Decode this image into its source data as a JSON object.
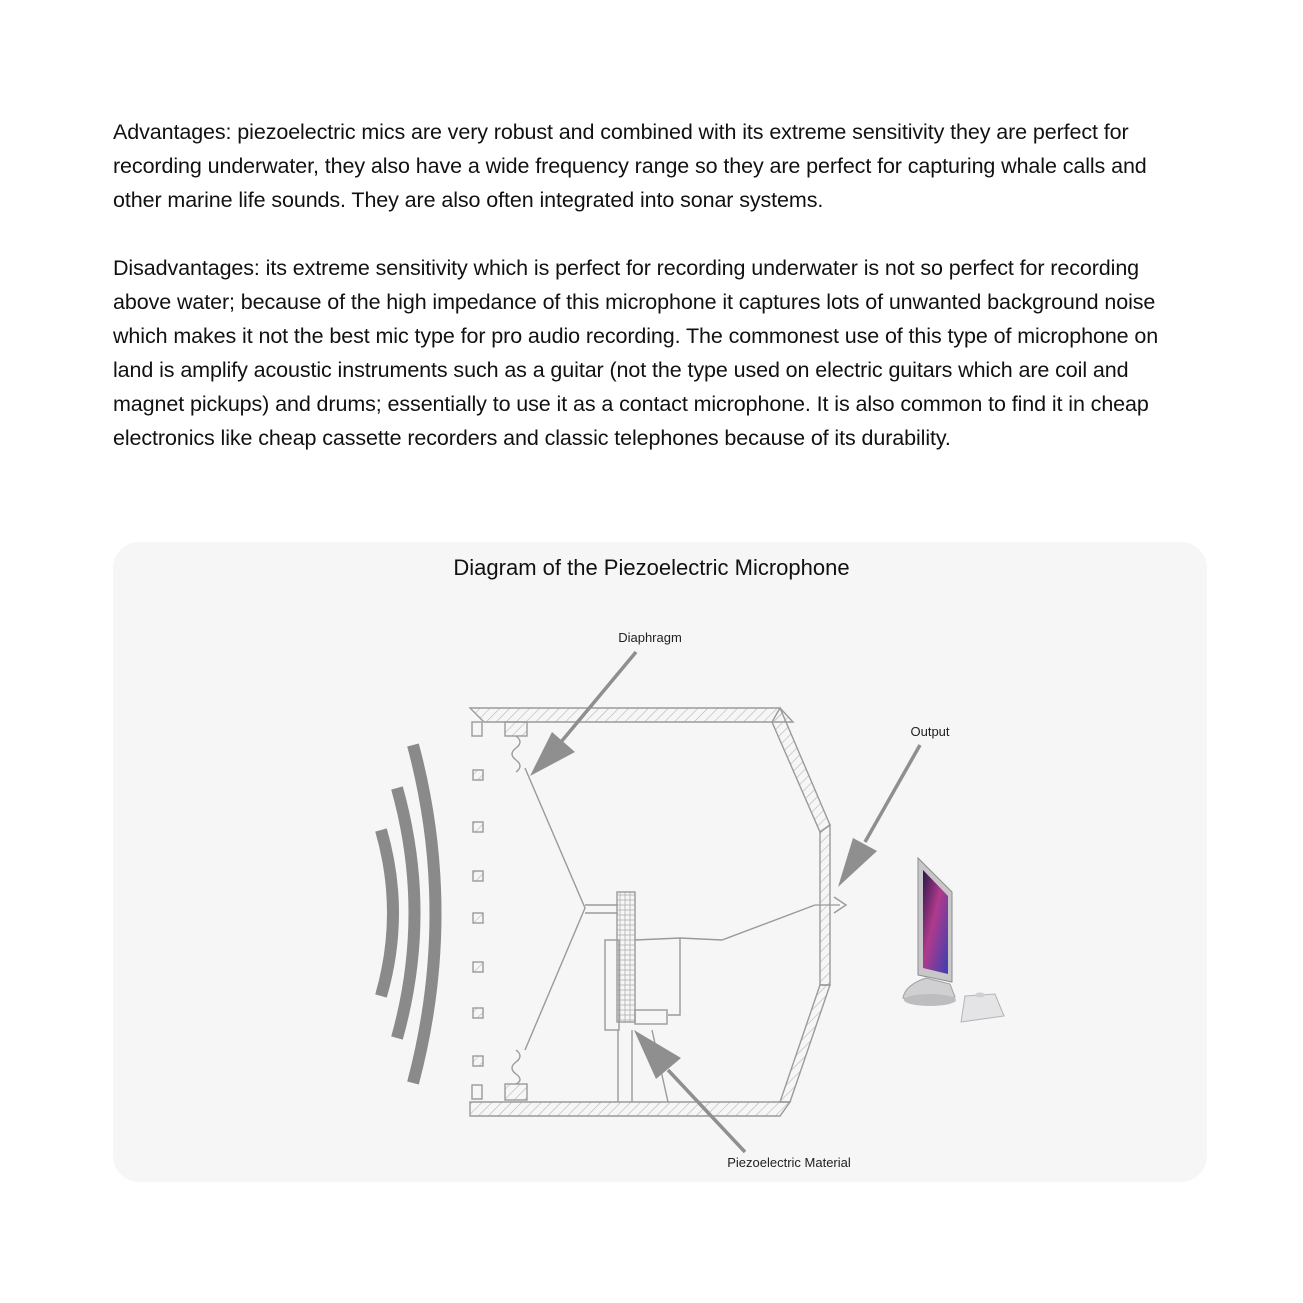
{
  "document": {
    "advantages": "Advantages: piezoelectric mics are very robust and combined with its extreme sensitivity they are perfect for recording underwater, they also have a wide frequency range so they are perfect for capturing whale calls and other marine life sounds. They are also often integrated into sonar systems.",
    "disadvantages": "Disadvantages: its extreme sensitivity which is perfect for recording underwater is not so perfect for recording above water; because of the high impedance of this microphone it captures lots of unwanted background noise which makes it not the best mic type for pro audio recording. The commonest use of this type of microphone on land is amplify acoustic instruments such as a guitar (not the type used on electric guitars which are coil and magnet pickups) and drums; essentially to use it as a contact microphone. It is also common to find it in cheap electronics like cheap cassette recorders and classic telephones because of its durability."
  },
  "figure": {
    "title": "Diagram of the Piezoelectric Microphone",
    "labels": {
      "diaphragm": "Diaphragm",
      "output": "Output",
      "piezo": "Piezoelectric Material"
    }
  },
  "colors": {
    "card_background": "#f6f6f6",
    "sound_wave": "#8a8a8a",
    "arrow": "#8f8f8f",
    "sketch": "#9a9a9a"
  },
  "icons": [
    "sound-wave-icon",
    "computer-icon",
    "keyboard-icon"
  ]
}
